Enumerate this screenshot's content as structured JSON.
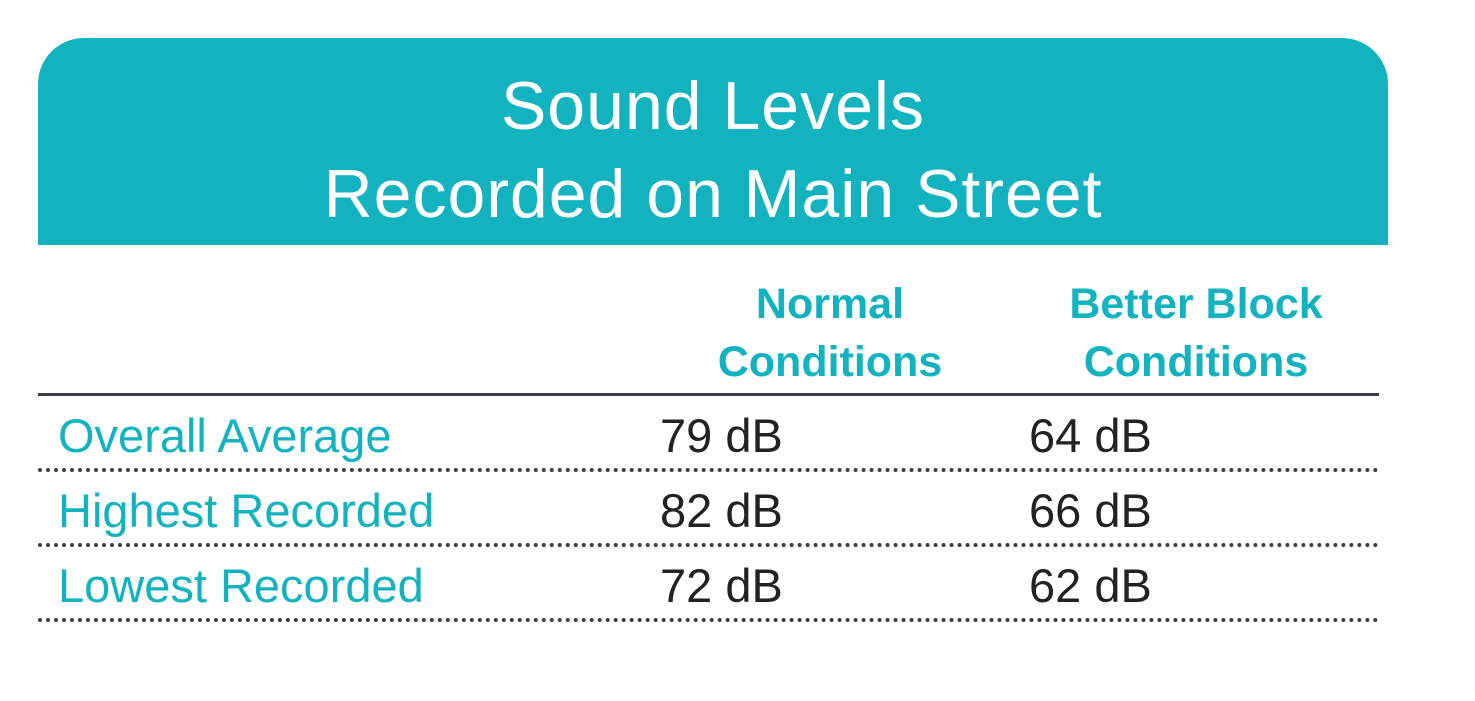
{
  "chart_data": {
    "type": "table",
    "title_lines": [
      "Sound Levels",
      "Recorded on Main Street"
    ],
    "columns": [
      {
        "line1": "Normal",
        "line2": "Conditions"
      },
      {
        "line1": "Better Block",
        "line2": "Conditions"
      }
    ],
    "rows": [
      {
        "label": "Overall Average",
        "normal": "79 dB",
        "better": "64 dB"
      },
      {
        "label": "Highest Recorded",
        "normal": "82 dB",
        "better": "66 dB"
      },
      {
        "label": "Lowest Recorded",
        "normal": "72 dB",
        "better": "62 dB"
      }
    ],
    "colors": {
      "accent": "#13b2bf",
      "text": "#222222",
      "rule": "#3d3d4a"
    }
  }
}
